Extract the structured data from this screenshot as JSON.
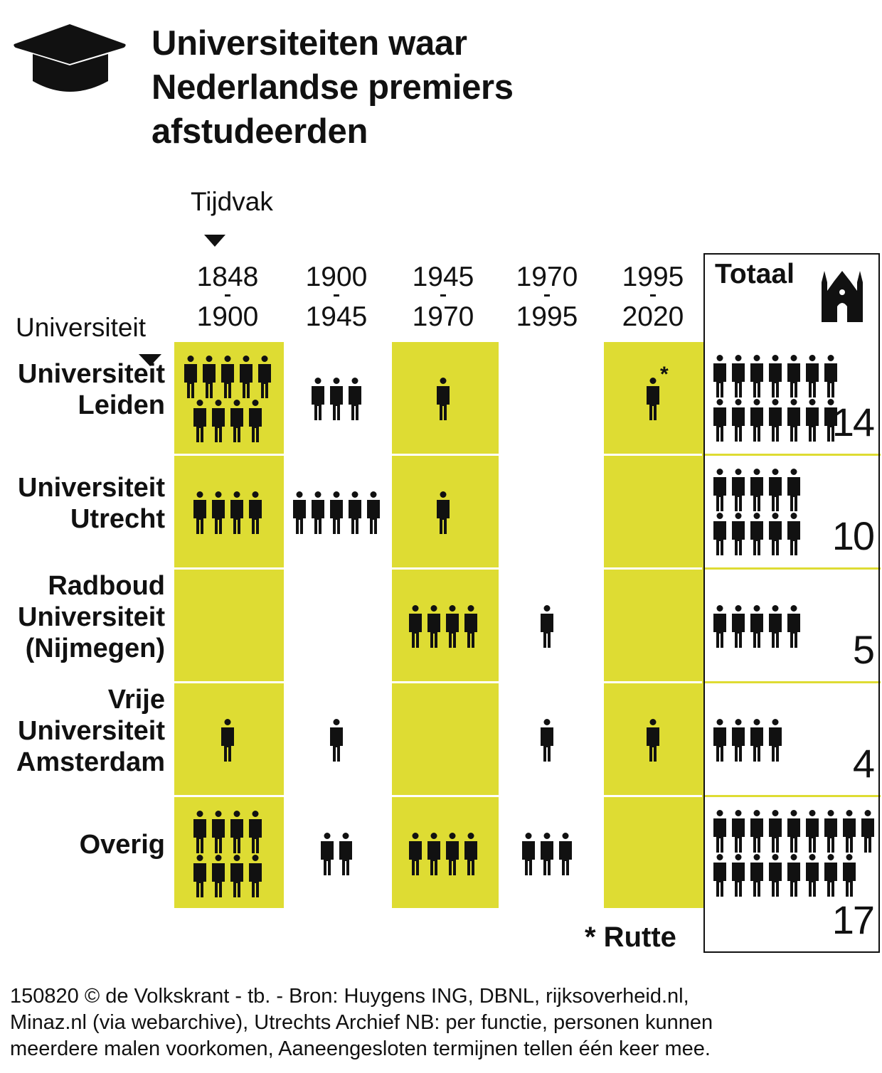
{
  "title_lines": [
    "Universiteiten waar",
    "Nederlandse premiers",
    "afstudeerden"
  ],
  "axis_labels": {
    "period": "Tijdvak",
    "university": "Universiteit"
  },
  "total_header": "Totaal",
  "icons": {
    "header": "graduation-cap-icon",
    "total": "church-icon",
    "unit": "person-icon"
  },
  "colors": {
    "highlight": "#dedc33",
    "ink": "#111111"
  },
  "note": "* Rutte",
  "footer_lines": [
    "150820 © de Volkskrant - tb. - Bron: Huygens ING, DBNL, rijksoverheid.nl,",
    "Minaz.nl (via webarchive), Utrechts Archief NB: per functie, personen kunnen",
    "meerdere malen voorkomen, Aaneengesloten termijnen tellen één keer mee."
  ],
  "chart_data": {
    "type": "table",
    "title": "Universiteiten waar Nederlandse premiers afstudeerden",
    "periods": [
      {
        "from": "1848",
        "to": "1900"
      },
      {
        "from": "1900",
        "to": "1945"
      },
      {
        "from": "1945",
        "to": "1970"
      },
      {
        "from": "1970",
        "to": "1995"
      },
      {
        "from": "1995",
        "to": "2020"
      }
    ],
    "highlighted_periods": [
      0,
      2,
      4
    ],
    "rows": [
      {
        "name": "Universiteit Leiden",
        "label_lines": [
          "Universiteit",
          "Leiden"
        ],
        "values": [
          9,
          3,
          1,
          0,
          1
        ],
        "total": 14,
        "total_label": "14",
        "marked_period": 4
      },
      {
        "name": "Universiteit Utrecht",
        "label_lines": [
          "Universiteit",
          "Utrecht"
        ],
        "values": [
          4,
          5,
          1,
          0,
          0
        ],
        "total": 10,
        "total_label": "10"
      },
      {
        "name": "Radboud Universiteit (Nijmegen)",
        "label_lines": [
          "Radboud",
          "Universiteit",
          "(Nijmegen)"
        ],
        "values": [
          0,
          0,
          4,
          1,
          0
        ],
        "total": 5,
        "total_label": "5"
      },
      {
        "name": "Vrije Universiteit Amsterdam",
        "label_lines": [
          "Vrije",
          "Universiteit",
          "Amsterdam"
        ],
        "values": [
          1,
          1,
          0,
          1,
          1
        ],
        "total": 4,
        "total_label": "4"
      },
      {
        "name": "Overig",
        "label_lines": [
          "Overig"
        ],
        "values": [
          8,
          2,
          4,
          3,
          0
        ],
        "total": 17,
        "total_label": "17"
      }
    ],
    "annotations": [
      "* Rutte"
    ]
  }
}
